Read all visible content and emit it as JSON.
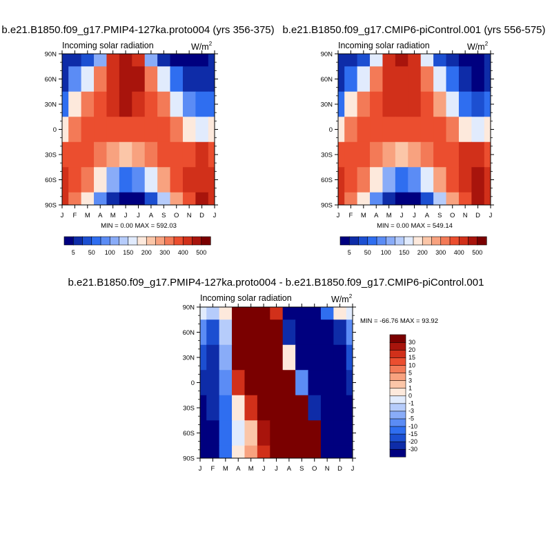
{
  "chart_data": [
    {
      "type": "heatmap",
      "title": "b.e21.B1850.f09_g17.PMIP4-127ka.proto004 (yrs 356-375)",
      "label_left": "Incoming solar radiation",
      "units_base": "W/m",
      "units_sup": "2",
      "x": [
        "J",
        "F",
        "M",
        "A",
        "M",
        "J",
        "J",
        "A",
        "S",
        "O",
        "N",
        "D",
        "J"
      ],
      "y": [
        "90N",
        "60N",
        "30N",
        "0",
        "30S",
        "60S",
        "90S"
      ],
      "stats": "MIN =   0.00 MAX = 592.03",
      "colorbar": {
        "levels": [
          5,
          25,
          50,
          75,
          100,
          125,
          150,
          175,
          200,
          250,
          300,
          350,
          400,
          450,
          500
        ],
        "labels": [
          "5",
          "50",
          "100",
          "150",
          "200",
          "300",
          "400",
          "500"
        ],
        "colors": [
          "#00007f",
          "#0e2ca8",
          "#1c4fd1",
          "#2f6ef0",
          "#5b8cf5",
          "#89acf8",
          "#b6ccfb",
          "#e1ebfd",
          "#fde9dc",
          "#fbc6a8",
          "#f8a27f",
          "#f37a57",
          "#eb4e2f",
          "#d1301a",
          "#a8140c",
          "#7a0000"
        ]
      },
      "cells": [
        [
          1,
          1,
          2,
          5,
          13,
          14,
          13,
          5,
          1,
          0,
          0,
          0,
          1
        ],
        [
          1,
          4,
          7,
          11,
          13,
          14,
          14,
          11,
          7,
          3,
          1,
          1,
          1
        ],
        [
          3,
          8,
          11,
          12,
          13,
          14,
          13,
          12,
          11,
          7,
          4,
          3,
          3
        ],
        [
          8,
          11,
          12,
          12,
          12,
          12,
          12,
          12,
          12,
          11,
          8,
          7,
          8
        ],
        [
          12,
          12,
          12,
          11,
          10,
          9,
          10,
          11,
          12,
          12,
          12,
          13,
          12
        ],
        [
          13,
          12,
          11,
          8,
          5,
          3,
          4,
          7,
          10,
          12,
          13,
          13,
          13
        ],
        [
          13,
          11,
          8,
          4,
          1,
          0,
          0,
          2,
          6,
          10,
          12,
          14,
          13
        ]
      ]
    },
    {
      "type": "heatmap",
      "title": "b.e21.B1850.f09_g17.CMIP6-piControl.001 (yrs 556-575)",
      "label_left": "Incoming solar radiation",
      "units_base": "W/m",
      "units_sup": "2",
      "x": [
        "J",
        "F",
        "M",
        "A",
        "M",
        "J",
        "J",
        "A",
        "S",
        "O",
        "N",
        "D",
        "J"
      ],
      "y": [
        "90N",
        "60N",
        "30N",
        "0",
        "30S",
        "60S",
        "90S"
      ],
      "stats": "MIN =   0.00 MAX = 549.14",
      "colorbar": {
        "levels": [
          5,
          25,
          50,
          75,
          100,
          125,
          150,
          175,
          200,
          250,
          300,
          350,
          400,
          450,
          500
        ],
        "labels": [
          "5",
          "50",
          "100",
          "150",
          "200",
          "300",
          "400",
          "500"
        ],
        "colors": [
          "#00007f",
          "#0e2ca8",
          "#1c4fd1",
          "#2f6ef0",
          "#5b8cf5",
          "#89acf8",
          "#b6ccfb",
          "#e1ebfd",
          "#fde9dc",
          "#fbc6a8",
          "#f8a27f",
          "#f37a57",
          "#eb4e2f",
          "#d1301a",
          "#a8140c",
          "#7a0000"
        ]
      },
      "cells": [
        [
          1,
          1,
          2,
          7,
          13,
          14,
          13,
          7,
          2,
          1,
          0,
          0,
          1
        ],
        [
          1,
          3,
          7,
          11,
          13,
          13,
          13,
          11,
          7,
          3,
          1,
          0,
          1
        ],
        [
          3,
          8,
          11,
          12,
          13,
          13,
          13,
          12,
          10,
          7,
          3,
          2,
          3
        ],
        [
          8,
          11,
          12,
          12,
          12,
          12,
          12,
          12,
          12,
          11,
          8,
          7,
          8
        ],
        [
          12,
          12,
          12,
          11,
          10,
          9,
          10,
          11,
          12,
          12,
          13,
          13,
          12
        ],
        [
          13,
          12,
          11,
          8,
          5,
          3,
          4,
          7,
          10,
          12,
          13,
          14,
          13
        ],
        [
          13,
          11,
          8,
          4,
          1,
          0,
          0,
          2,
          6,
          10,
          12,
          14,
          13
        ]
      ]
    },
    {
      "type": "heatmap",
      "title": "b.e21.B1850.f09_g17.PMIP4-127ka.proto004 - b.e21.B1850.f09_g17.CMIP6-piControl.001",
      "label_left": "Incoming solar radiation",
      "units_base": "W/m",
      "units_sup": "2",
      "x": [
        "J",
        "F",
        "M",
        "A",
        "M",
        "J",
        "J",
        "A",
        "S",
        "O",
        "N",
        "D",
        "J"
      ],
      "y": [
        "90N",
        "60N",
        "30N",
        "0",
        "30S",
        "60S",
        "90S"
      ],
      "stats": "MIN = -66.76 MAX =  93.92",
      "colorbar": {
        "levels": [
          -30,
          -20,
          -15,
          -10,
          -5,
          -3,
          -1,
          0,
          1,
          3,
          5,
          10,
          15,
          20,
          30
        ],
        "labels": [
          "-30",
          "-20",
          "-15",
          "-10",
          "-5",
          "-3",
          "-1",
          "0",
          "1",
          "3",
          "5",
          "10",
          "15",
          "20",
          "30"
        ],
        "colors": [
          "#00007f",
          "#0e2ca8",
          "#1c4fd1",
          "#2f6ef0",
          "#5b8cf5",
          "#89acf8",
          "#b6ccfb",
          "#e1ebfd",
          "#fde9dc",
          "#fbc6a8",
          "#f8a27f",
          "#f37a57",
          "#eb4e2f",
          "#d1301a",
          "#a8140c",
          "#7a0000"
        ]
      },
      "cells": [
        [
          7,
          6,
          8,
          15,
          15,
          15,
          13,
          0,
          0,
          0,
          3,
          8,
          7
        ],
        [
          4,
          2,
          6,
          15,
          15,
          15,
          15,
          1,
          0,
          0,
          0,
          1,
          4
        ],
        [
          2,
          1,
          5,
          15,
          15,
          15,
          15,
          8,
          0,
          0,
          0,
          0,
          2
        ],
        [
          1,
          1,
          4,
          13,
          15,
          15,
          15,
          15,
          4,
          0,
          0,
          0,
          1
        ],
        [
          0,
          1,
          3,
          8,
          13,
          15,
          15,
          15,
          15,
          1,
          0,
          0,
          0
        ],
        [
          0,
          0,
          3,
          7,
          9,
          14,
          15,
          15,
          15,
          15,
          0,
          0,
          0
        ],
        [
          0,
          0,
          3,
          8,
          10,
          13,
          15,
          15,
          15,
          15,
          0,
          0,
          0
        ]
      ]
    }
  ]
}
